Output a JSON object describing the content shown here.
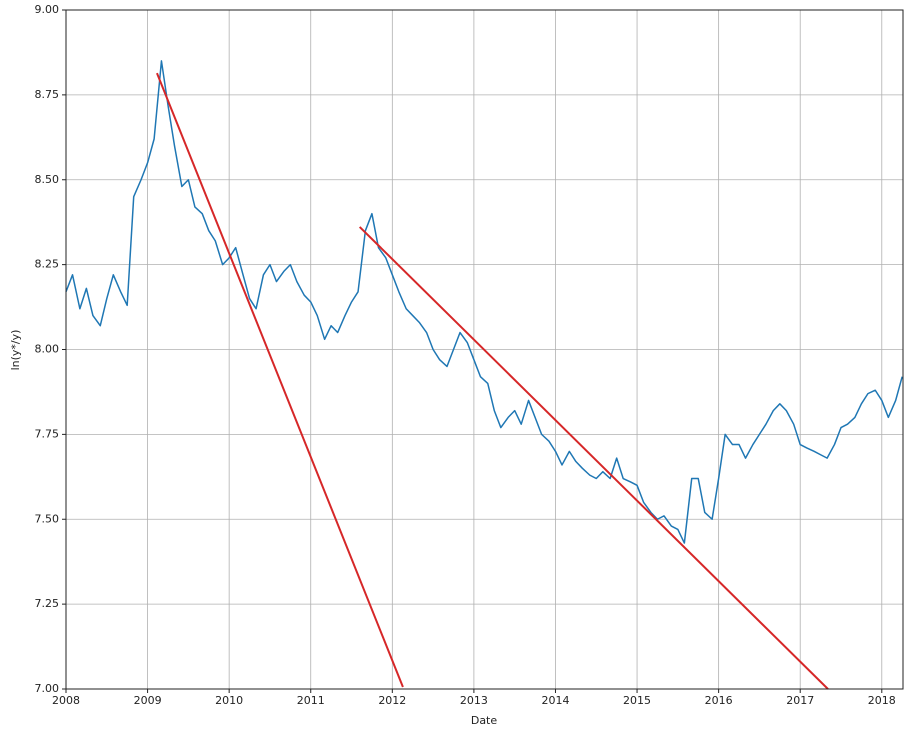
{
  "chart_data": {
    "type": "line",
    "xlabel": "Date",
    "ylabel": "ln(y*/y)",
    "xlim": [
      2008,
      2018.26
    ],
    "ylim": [
      7.0,
      9.0
    ],
    "xticks": [
      2008,
      2009,
      2010,
      2011,
      2012,
      2013,
      2014,
      2015,
      2016,
      2017,
      2018
    ],
    "yticks": [
      {
        "value": 7.0,
        "label": "7.00"
      },
      {
        "value": 7.25,
        "label": "7.25"
      },
      {
        "value": 7.5,
        "label": "7.50"
      },
      {
        "value": 7.75,
        "label": "7.75"
      },
      {
        "value": 8.0,
        "label": "8.00"
      },
      {
        "value": 8.25,
        "label": "8.25"
      },
      {
        "value": 8.5,
        "label": "8.50"
      },
      {
        "value": 8.75,
        "label": "8.75"
      },
      {
        "value": 9.0,
        "label": "9.00"
      }
    ],
    "grid": true,
    "series": [
      {
        "color": "#1f77b4",
        "x": [
          2008.0,
          2008.08,
          2008.17,
          2008.25,
          2008.33,
          2008.42,
          2008.5,
          2008.58,
          2008.67,
          2008.75,
          2008.83,
          2008.92,
          2009.0,
          2009.08,
          2009.17,
          2009.25,
          2009.33,
          2009.42,
          2009.5,
          2009.58,
          2009.67,
          2009.75,
          2009.83,
          2009.92,
          2010.0,
          2010.08,
          2010.17,
          2010.25,
          2010.33,
          2010.42,
          2010.5,
          2010.58,
          2010.67,
          2010.75,
          2010.83,
          2010.92,
          2011.0,
          2011.08,
          2011.17,
          2011.25,
          2011.33,
          2011.42,
          2011.5,
          2011.58,
          2011.67,
          2011.75,
          2011.83,
          2011.92,
          2012.0,
          2012.08,
          2012.17,
          2012.25,
          2012.33,
          2012.42,
          2012.5,
          2012.58,
          2012.67,
          2012.75,
          2012.83,
          2012.92,
          2013.0,
          2013.08,
          2013.17,
          2013.25,
          2013.33,
          2013.42,
          2013.5,
          2013.58,
          2013.67,
          2013.75,
          2013.83,
          2013.92,
          2014.0,
          2014.08,
          2014.17,
          2014.25,
          2014.33,
          2014.42,
          2014.5,
          2014.58,
          2014.67,
          2014.75,
          2014.83,
          2014.92,
          2015.0,
          2015.08,
          2015.17,
          2015.25,
          2015.33,
          2015.42,
          2015.5,
          2015.58,
          2015.67,
          2015.75,
          2015.83,
          2015.92,
          2016.0,
          2016.08,
          2016.17,
          2016.25,
          2016.33,
          2016.42,
          2016.5,
          2016.58,
          2016.67,
          2016.75,
          2016.83,
          2016.92,
          2017.0,
          2017.08,
          2017.17,
          2017.25,
          2017.33,
          2017.42,
          2017.5,
          2017.58,
          2017.67,
          2017.75,
          2017.83,
          2017.92,
          2018.0,
          2018.08,
          2018.17,
          2018.25
        ],
        "values": [
          8.17,
          8.22,
          8.12,
          8.18,
          8.1,
          8.07,
          8.15,
          8.22,
          8.17,
          8.13,
          8.45,
          8.5,
          8.55,
          8.62,
          8.85,
          8.72,
          8.6,
          8.48,
          8.5,
          8.42,
          8.4,
          8.35,
          8.32,
          8.25,
          8.27,
          8.3,
          8.22,
          8.15,
          8.12,
          8.22,
          8.25,
          8.2,
          8.23,
          8.25,
          8.2,
          8.16,
          8.14,
          8.1,
          8.03,
          8.07,
          8.05,
          8.1,
          8.14,
          8.17,
          8.35,
          8.4,
          8.3,
          8.27,
          8.22,
          8.17,
          8.12,
          8.1,
          8.08,
          8.05,
          8.0,
          7.97,
          7.95,
          8.0,
          8.05,
          8.02,
          7.97,
          7.92,
          7.9,
          7.82,
          7.77,
          7.8,
          7.82,
          7.78,
          7.85,
          7.8,
          7.75,
          7.73,
          7.7,
          7.66,
          7.7,
          7.67,
          7.65,
          7.63,
          7.62,
          7.64,
          7.62,
          7.68,
          7.62,
          7.61,
          7.6,
          7.55,
          7.52,
          7.5,
          7.51,
          7.48,
          7.47,
          7.43,
          7.62,
          7.62,
          7.52,
          7.5,
          7.62,
          7.75,
          7.72,
          7.72,
          7.68,
          7.72,
          7.75,
          7.78,
          7.82,
          7.84,
          7.82,
          7.78,
          7.72,
          7.71,
          7.7,
          7.69,
          7.68,
          7.72,
          7.77,
          7.78,
          7.8,
          7.84,
          7.87,
          7.88,
          7.85,
          7.8,
          7.85,
          7.92
        ]
      },
      {
        "color": "#d62728",
        "x": [
          2009.115,
          2012.13
        ],
        "values": [
          8.814,
          7.006
        ]
      },
      {
        "color": "#d62728",
        "x": [
          2011.6,
          2017.34
        ],
        "values": [
          8.361,
          7.0
        ]
      }
    ]
  }
}
